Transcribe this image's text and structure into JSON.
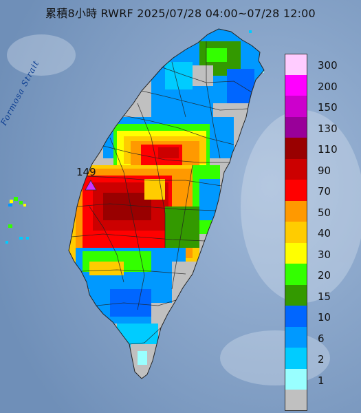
{
  "title": "累積8小時 RWRF 2025/07/28 04:00~07/28 12:00",
  "sea_label": "Formosa Strait",
  "max_value_label": "149",
  "legend": [
    {
      "label": "300",
      "color": "#ffccff"
    },
    {
      "label": "200",
      "color": "#ff00ff"
    },
    {
      "label": "150",
      "color": "#cc00cc"
    },
    {
      "label": "130",
      "color": "#990099"
    },
    {
      "label": "110",
      "color": "#990000"
    },
    {
      "label": "90",
      "color": "#cc0000"
    },
    {
      "label": "70",
      "color": "#ff0000"
    },
    {
      "label": "50",
      "color": "#ff9900"
    },
    {
      "label": "40",
      "color": "#ffcc00"
    },
    {
      "label": "30",
      "color": "#ffff00"
    },
    {
      "label": "20",
      "color": "#33ff00"
    },
    {
      "label": "15",
      "color": "#339900"
    },
    {
      "label": "10",
      "color": "#0066ff"
    },
    {
      "label": "6",
      "color": "#0099ff"
    },
    {
      "label": "2",
      "color": "#00ccff"
    },
    {
      "label": "1",
      "color": "#99ffff"
    },
    {
      "label": "",
      "color": "#c0c0c0"
    }
  ],
  "colors": {
    "sea": "#7f9cc0",
    "land_no_rain": "#c0c0c0",
    "max_marker": "#cc33ff",
    "boundary": "#222222"
  }
}
